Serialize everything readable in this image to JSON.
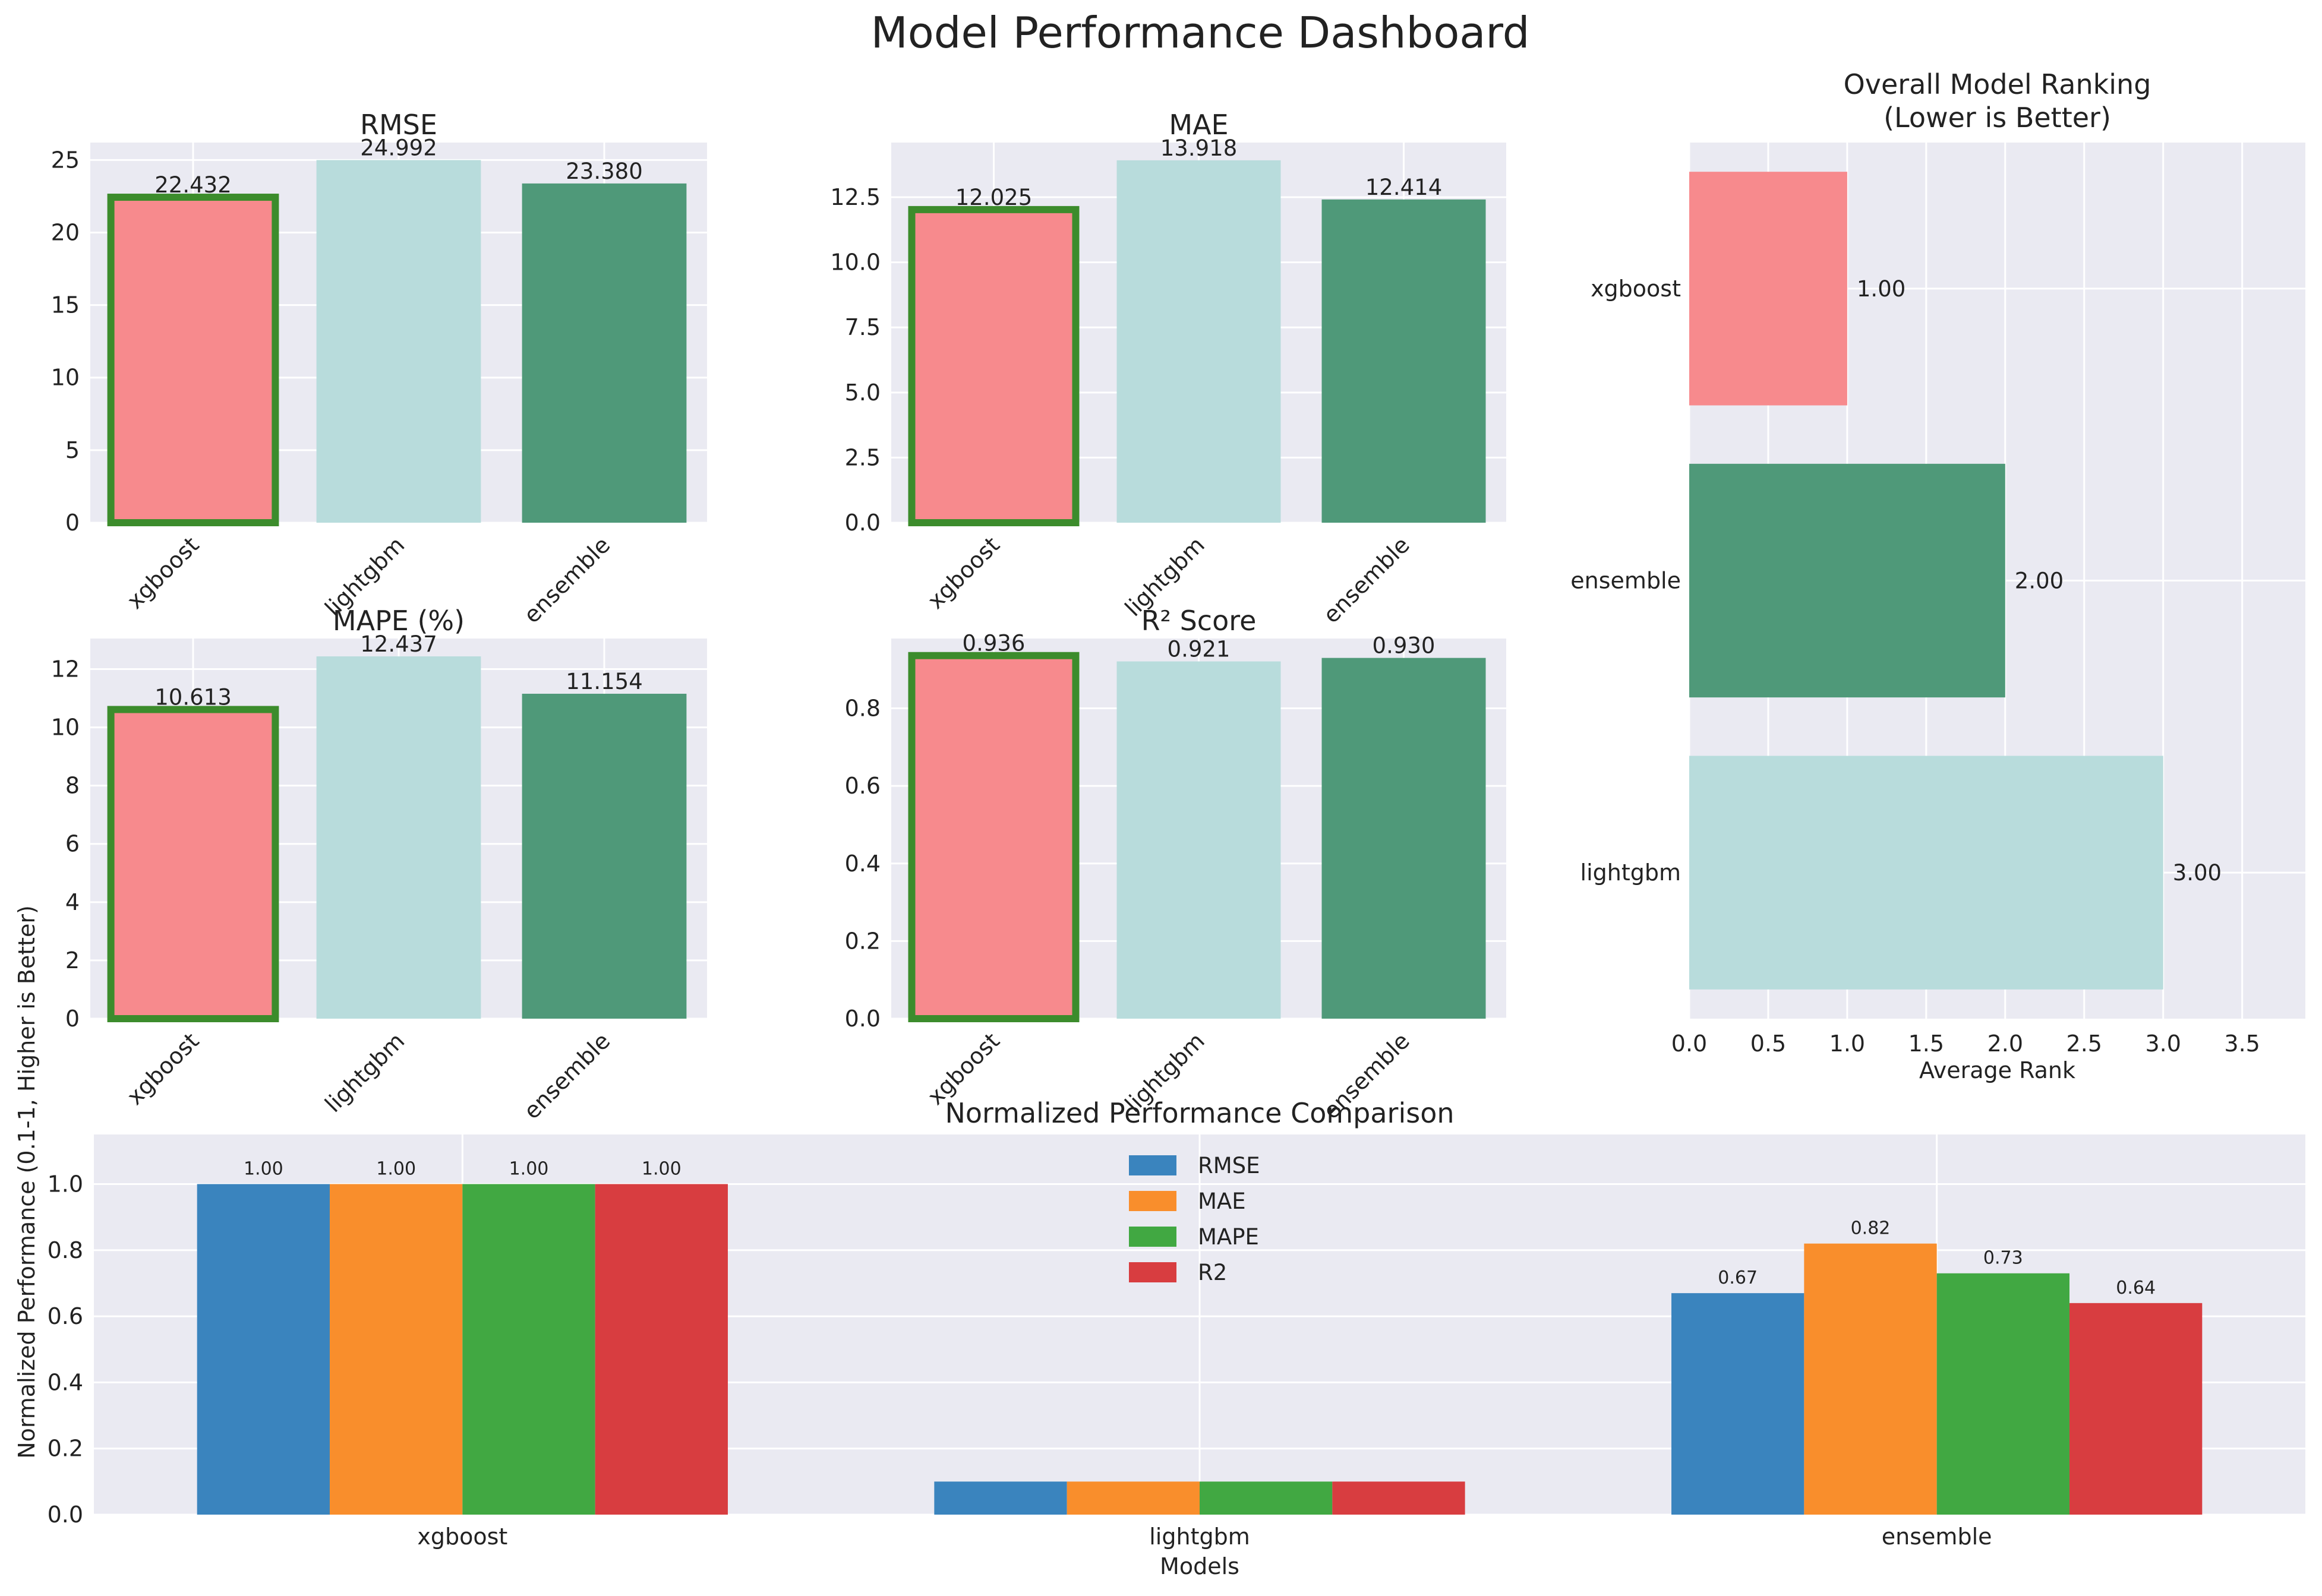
{
  "title": "Model Performance Dashboard",
  "colors": {
    "xgboost": "#f78a8d",
    "lightgbm": "#b8dcdc",
    "ensemble": "#4f9979",
    "highlight": "#3c8c2c",
    "RMSE": "#3a84be",
    "MAE": "#f98e2c",
    "MAPE": "#41a842",
    "R2": "#d83d40",
    "panel_bg": "#eaeaf2"
  },
  "chart_data": [
    {
      "type": "bar",
      "title": "RMSE",
      "categories": [
        "xgboost",
        "lightgbm",
        "ensemble"
      ],
      "values": [
        22.432,
        24.992,
        23.38
      ],
      "value_labels": [
        "22.432",
        "24.992",
        "23.380"
      ],
      "highlighted": "xgboost",
      "ylim": [
        0,
        26.2
      ],
      "yticks": [
        0,
        5,
        10,
        15,
        20,
        25
      ],
      "ytick_labels": [
        "0",
        "5",
        "10",
        "15",
        "20",
        "25"
      ]
    },
    {
      "type": "bar",
      "title": "MAE",
      "categories": [
        "xgboost",
        "lightgbm",
        "ensemble"
      ],
      "values": [
        12.025,
        13.918,
        12.414
      ],
      "value_labels": [
        "12.025",
        "13.918",
        "12.414"
      ],
      "highlighted": "xgboost",
      "ylim": [
        0,
        14.6
      ],
      "yticks": [
        0,
        2.5,
        5,
        7.5,
        10,
        12.5
      ],
      "ytick_labels": [
        "0.0",
        "2.5",
        "5.0",
        "7.5",
        "10.0",
        "12.5"
      ]
    },
    {
      "type": "bar",
      "title": "MAPE (%)",
      "categories": [
        "xgboost",
        "lightgbm",
        "ensemble"
      ],
      "values": [
        10.613,
        12.437,
        11.154
      ],
      "value_labels": [
        "10.613",
        "12.437",
        "11.154"
      ],
      "highlighted": "xgboost",
      "ylim": [
        0,
        13.05
      ],
      "yticks": [
        0,
        2,
        4,
        6,
        8,
        10,
        12
      ],
      "ytick_labels": [
        "0",
        "2",
        "4",
        "6",
        "8",
        "10",
        "12"
      ]
    },
    {
      "type": "bar",
      "title": "R² Score",
      "categories": [
        "xgboost",
        "lightgbm",
        "ensemble"
      ],
      "values": [
        0.936,
        0.921,
        0.93
      ],
      "value_labels": [
        "0.936",
        "0.921",
        "0.930"
      ],
      "highlighted": "xgboost",
      "ylim": [
        0,
        0.98
      ],
      "yticks": [
        0,
        0.2,
        0.4,
        0.6,
        0.8
      ],
      "ytick_labels": [
        "0.0",
        "0.2",
        "0.4",
        "0.6",
        "0.8"
      ]
    },
    {
      "type": "bar",
      "orientation": "horizontal",
      "title": "Overall Model Ranking\n(Lower is Better)",
      "categories": [
        "xgboost",
        "ensemble",
        "lightgbm"
      ],
      "values": [
        1.0,
        2.0,
        3.0
      ],
      "value_labels": [
        "1.00",
        "2.00",
        "3.00"
      ],
      "xlabel": "Average Rank",
      "xlim": [
        0,
        3.9
      ],
      "xticks": [
        0,
        0.5,
        1,
        1.5,
        2,
        2.5,
        3,
        3.5
      ],
      "xtick_labels": [
        "0.0",
        "0.5",
        "1.0",
        "1.5",
        "2.0",
        "2.5",
        "3.0",
        "3.5"
      ]
    },
    {
      "type": "bar",
      "title": "Normalized Performance Comparison",
      "xlabel": "Models",
      "ylabel": "Normalized Performance (0.1-1, Higher is Better)",
      "categories": [
        "xgboost",
        "lightgbm",
        "ensemble"
      ],
      "series": [
        {
          "name": "RMSE",
          "values": [
            1.0,
            0.1,
            0.67
          ],
          "value_labels": [
            "1.00",
            "",
            "0.67"
          ]
        },
        {
          "name": "MAE",
          "values": [
            1.0,
            0.1,
            0.82
          ],
          "value_labels": [
            "1.00",
            "",
            "0.82"
          ]
        },
        {
          "name": "MAPE",
          "values": [
            1.0,
            0.1,
            0.73
          ],
          "value_labels": [
            "1.00",
            "",
            "0.73"
          ]
        },
        {
          "name": "R2",
          "values": [
            1.0,
            0.1,
            0.64
          ],
          "value_labels": [
            "1.00",
            "",
            "0.64"
          ]
        }
      ],
      "ylim": [
        0,
        1.15
      ],
      "yticks": [
        0,
        0.2,
        0.4,
        0.6,
        0.8,
        1.0
      ],
      "ytick_labels": [
        "0.0",
        "0.2",
        "0.4",
        "0.6",
        "0.8",
        "1.0"
      ],
      "legend": "top-center",
      "grid": true
    }
  ]
}
